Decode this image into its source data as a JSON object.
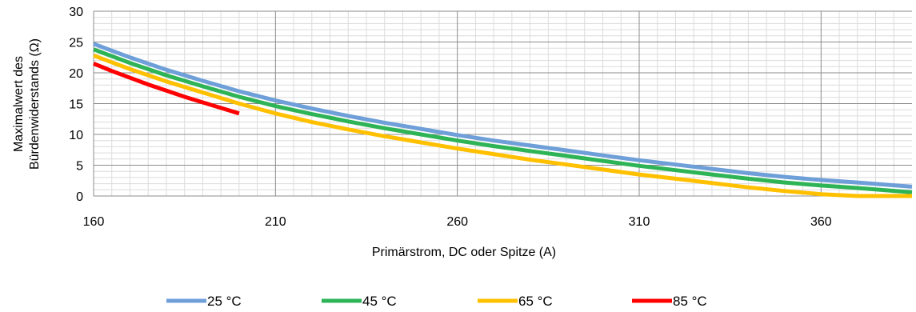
{
  "chart_data": {
    "type": "line",
    "title": "",
    "xlabel": "Primärstrom, DC oder Spitze (A)",
    "ylabel_lines": [
      "Maximalwert des",
      "Bürdenwiderstands (Ω)"
    ],
    "xlim": [
      160,
      385
    ],
    "ylim": [
      0,
      30
    ],
    "x_ticks": [
      160,
      210,
      260,
      310,
      360
    ],
    "y_ticks": [
      0,
      5,
      10,
      15,
      20,
      25,
      30
    ],
    "x_tick_labels": [
      "160",
      "210",
      "260",
      "310",
      "360"
    ],
    "y_tick_labels": [
      "0",
      "5",
      "10",
      "15",
      "20",
      "25",
      "30"
    ],
    "grid": true,
    "legend_position": "bottom",
    "series": [
      {
        "name": "25 °C",
        "color": "#6f9fd8",
        "x": [
          160,
          170,
          180,
          190,
          200,
          210,
          220,
          230,
          240,
          250,
          260,
          270,
          280,
          290,
          300,
          310,
          320,
          330,
          340,
          350,
          360,
          370,
          385
        ],
        "y": [
          24.7,
          22.5,
          20.5,
          18.7,
          17.0,
          15.5,
          14.2,
          13.0,
          11.9,
          10.9,
          9.9,
          9.0,
          8.2,
          7.4,
          6.6,
          5.8,
          5.1,
          4.4,
          3.7,
          3.1,
          2.6,
          2.2,
          1.5
        ]
      },
      {
        "name": "45 °C",
        "color": "#2eb457",
        "x": [
          160,
          170,
          180,
          190,
          200,
          210,
          220,
          230,
          240,
          250,
          260,
          270,
          280,
          290,
          300,
          310,
          320,
          330,
          340,
          350,
          360,
          370,
          385
        ],
        "y": [
          23.8,
          21.6,
          19.6,
          17.8,
          16.1,
          14.6,
          13.3,
          12.1,
          11.0,
          10.0,
          9.0,
          8.1,
          7.3,
          6.5,
          5.7,
          4.9,
          4.2,
          3.5,
          2.8,
          2.2,
          1.7,
          1.3,
          0.6
        ]
      },
      {
        "name": "65 °C",
        "color": "#ffc000",
        "x": [
          160,
          170,
          180,
          190,
          200,
          210,
          220,
          230,
          240,
          250,
          260,
          270,
          280,
          290,
          300,
          310,
          320,
          330,
          340,
          350,
          360,
          370,
          385
        ],
        "y": [
          22.8,
          20.6,
          18.6,
          16.8,
          15.0,
          13.4,
          12.0,
          10.8,
          9.7,
          8.7,
          7.7,
          6.8,
          5.9,
          5.1,
          4.3,
          3.5,
          2.8,
          2.1,
          1.4,
          0.8,
          0.3,
          0.0,
          0.0
        ]
      },
      {
        "name": "85 °C",
        "color": "#ff0000",
        "x": [
          160,
          165,
          170,
          175,
          180,
          185,
          190,
          195,
          200
        ],
        "y": [
          21.5,
          20.3,
          19.2,
          18.1,
          17.1,
          16.1,
          15.2,
          14.3,
          13.4
        ]
      }
    ]
  }
}
